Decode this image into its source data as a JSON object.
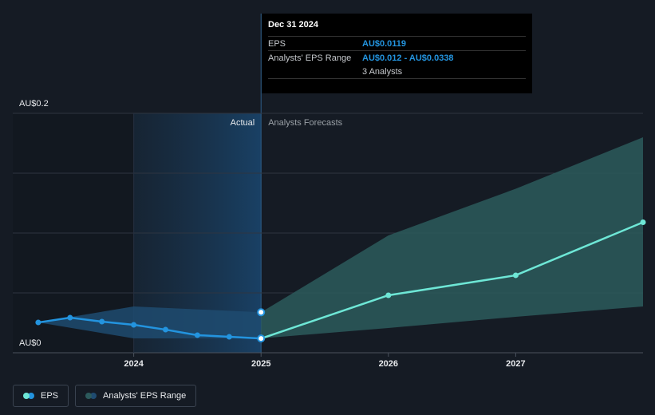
{
  "chart_data": {
    "type": "line",
    "xlim": [
      2023.05,
      2028
    ],
    "xticks": [
      2024,
      2025,
      2026,
      2027
    ],
    "ylim": [
      0,
      0.2
    ],
    "yticks": [
      {
        "value": 0,
        "label": "AU$0"
      },
      {
        "value": 0.2,
        "label": "AU$0.2"
      }
    ],
    "ygrid": [
      0,
      0.05,
      0.1,
      0.15,
      0.2
    ],
    "forecast_from": 2025,
    "actual_label": "Actual",
    "forecast_label": "Analysts Forecasts",
    "series": [
      {
        "name": "EPS",
        "color": "#2394df",
        "forecast_color": "#6ee7d6",
        "x": [
          2023.25,
          2023.5,
          2023.75,
          2024,
          2024.25,
          2024.5,
          2024.75,
          2025,
          2026,
          2027,
          2028
        ],
        "values": [
          0.0253,
          0.0293,
          0.026,
          0.0233,
          0.0193,
          0.0147,
          0.0133,
          0.0119,
          0.048,
          0.0647,
          0.109
        ]
      },
      {
        "name": "Analysts' EPS Range",
        "color": "#1f4b70",
        "forecast_color": "#2c5a5c",
        "x": [
          2023.25,
          2024,
          2025,
          2026,
          2027,
          2028
        ],
        "low": [
          0.0253,
          0.012,
          0.012,
          0.0207,
          0.03,
          0.0387
        ],
        "high": [
          0.0253,
          0.0387,
          0.0338,
          0.098,
          0.137,
          0.18
        ]
      }
    ]
  },
  "tooltip": {
    "date": "Dec 31 2024",
    "rows": [
      [
        "EPS",
        "AU$0.0119"
      ],
      [
        "Analysts' EPS Range",
        "AU$0.012 - AU$0.0338"
      ]
    ],
    "analysts": "3 Analysts"
  }
}
